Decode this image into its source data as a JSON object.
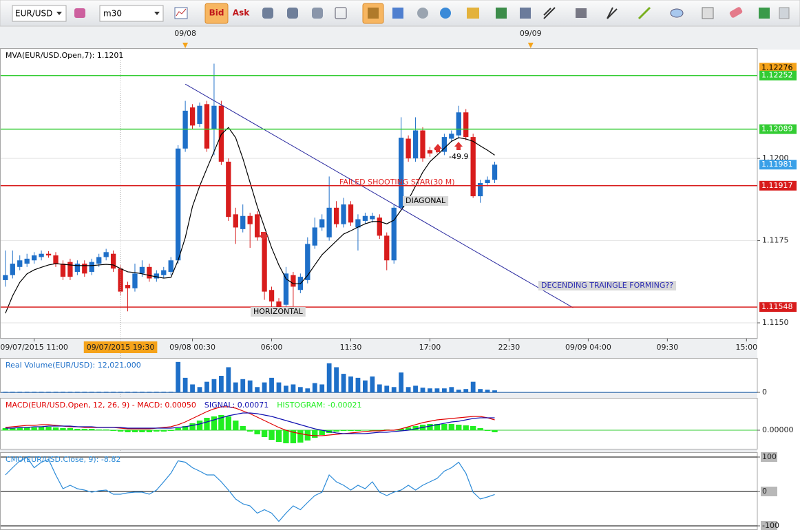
{
  "toolbar": {
    "symbol": "EUR/USD",
    "timeframe": "m30",
    "bid": "Bid",
    "ask": "Ask"
  },
  "chart_data": [
    {
      "type": "candlestick",
      "up_color": "#1e6fc8",
      "down_color": "#d81c1c",
      "open": [
        1.1163,
        1.11645,
        1.1167,
        1.1168,
        1.1169,
        1.117,
        1.1171,
        1.11705,
        1.1168,
        1.11685,
        1.11655,
        1.1168,
        1.11655,
        1.1168,
        1.117,
        1.1171,
        1.11665,
        1.11615,
        1.11605,
        1.1165,
        1.1167,
        1.11635,
        1.11645,
        1.11655,
        1.1169,
        1.1203,
        1.12155,
        1.12105,
        1.12165,
        1.1209,
        1.1216,
        1.1199,
        1.1183,
        1.11785,
        1.11825,
        1.1183,
        1.11765,
        1.116,
        1.11565,
        1.11555,
        1.11645,
        1.116,
        1.1163,
        1.11735,
        1.1179,
        1.1176,
        1.1185,
        1.118,
        1.1186,
        1.1179,
        1.1181,
        1.11815,
        1.1182,
        1.11765,
        1.1169,
        1.1185,
        1.1206,
        1.12,
        1.12085,
        1.12025,
        1.1203,
        1.1202,
        1.1206,
        1.1207,
        1.1214,
        1.12065,
        1.11885,
        1.11925,
        1.11935
      ],
      "high": [
        1.1172,
        1.1172,
        1.11705,
        1.1171,
        1.11715,
        1.1172,
        1.11718,
        1.11715,
        1.1169,
        1.11695,
        1.1169,
        1.1169,
        1.11695,
        1.1171,
        1.11725,
        1.1172,
        1.11675,
        1.11625,
        1.1168,
        1.1169,
        1.1168,
        1.1166,
        1.1167,
        1.117,
        1.1204,
        1.12175,
        1.12165,
        1.1217,
        1.12175,
        1.12288,
        1.12175,
        1.12,
        1.1185,
        1.1186,
        1.11835,
        1.1184,
        1.1177,
        1.1161,
        1.11575,
        1.1167,
        1.11655,
        1.1165,
        1.1176,
        1.1182,
        1.1183,
        1.11945,
        1.1187,
        1.1188,
        1.1187,
        1.1183,
        1.11835,
        1.11835,
        1.1183,
        1.11775,
        1.1186,
        1.12125,
        1.1207,
        1.12125,
        1.12095,
        1.12035,
        1.1204,
        1.12075,
        1.12085,
        1.1216,
        1.1215,
        1.12075,
        1.11935,
        1.11945,
        1.1199
      ],
      "low": [
        1.1161,
        1.11635,
        1.1166,
        1.1167,
        1.1168,
        1.1169,
        1.11698,
        1.1167,
        1.1163,
        1.1163,
        1.11645,
        1.1164,
        1.11645,
        1.1167,
        1.1169,
        1.11655,
        1.11585,
        1.11535,
        1.11595,
        1.1164,
        1.11625,
        1.11625,
        1.11635,
        1.11645,
        1.1168,
        1.1202,
        1.1209,
        1.12095,
        1.1202,
        1.1201,
        1.1198,
        1.1181,
        1.1174,
        1.11775,
        1.11728,
        1.1175,
        1.1157,
        1.1154,
        1.1154,
        1.11545,
        1.1155,
        1.1159,
        1.1162,
        1.11725,
        1.1178,
        1.1175,
        1.1179,
        1.1179,
        1.11795,
        1.1172,
        1.118,
        1.11805,
        1.11755,
        1.1166,
        1.1168,
        1.1184,
        1.1199,
        1.1199,
        1.1199,
        1.12005,
        1.12015,
        1.1201,
        1.1205,
        1.1206,
        1.12055,
        1.1188,
        1.11865,
        1.11915,
        1.11925
      ],
      "close": [
        1.11645,
        1.1168,
        1.1169,
        1.11695,
        1.11705,
        1.1171,
        1.11705,
        1.1168,
        1.1164,
        1.1164,
        1.1168,
        1.1165,
        1.11685,
        1.117,
        1.11715,
        1.11665,
        1.11595,
        1.11605,
        1.1165,
        1.1167,
        1.11635,
        1.1165,
        1.1166,
        1.1169,
        1.1203,
        1.12145,
        1.121,
        1.1216,
        1.1203,
        1.1216,
        1.1199,
        1.11822,
        1.1179,
        1.11825,
        1.118,
        1.1176,
        1.11595,
        1.11565,
        1.11548,
        1.1165,
        1.1161,
        1.1164,
        1.1174,
        1.1179,
        1.11815,
        1.1185,
        1.118,
        1.1186,
        1.11805,
        1.11815,
        1.11825,
        1.11825,
        1.11765,
        1.1169,
        1.1185,
        1.12063,
        1.12,
        1.12085,
        1.12,
        1.12015,
        1.12025,
        1.12065,
        1.12075,
        1.1214,
        1.12065,
        1.11885,
        1.11925,
        1.11935,
        1.11981
      ],
      "series": [
        {
          "name": "MVA(EUR/USD.Open,7): 1.1201",
          "color": "#000000",
          "values": [
            1.11529,
            1.11582,
            1.11623,
            1.11649,
            1.11661,
            1.11669,
            1.11676,
            1.1168,
            1.11678,
            1.11676,
            1.11674,
            1.11674,
            1.11674,
            1.11676,
            1.11678,
            1.11676,
            1.11665,
            1.11655,
            1.11653,
            1.11649,
            1.11644,
            1.1164,
            1.11636,
            1.11638,
            1.1169,
            1.11759,
            1.11854,
            1.11916,
            1.11969,
            1.12021,
            1.12073,
            1.12094,
            1.12063,
            1.12,
            1.11927,
            1.11854,
            1.11791,
            1.11728,
            1.11676,
            1.11634,
            1.11619,
            1.11619,
            1.11644,
            1.11676,
            1.11707,
            1.11728,
            1.11749,
            1.1177,
            1.1178,
            1.11791,
            1.11801,
            1.11808,
            1.11808,
            1.11801,
            1.11812,
            1.11843,
            1.11874,
            1.11916,
            1.11958,
            1.1199,
            1.1201,
            1.12031,
            1.12052,
            1.12063,
            1.12059,
            1.12052,
            1.12038,
            1.12025,
            1.1201
          ]
        }
      ],
      "xlim": [
        -0.75,
        104.5
      ],
      "xticks": [
        {
          "value": 4,
          "label": "09/07/2015 11:00"
        },
        {
          "value": 26,
          "label": "09/08 00:30"
        },
        {
          "value": 37,
          "label": "06:00"
        },
        {
          "value": 48,
          "label": "11:30"
        },
        {
          "value": 59,
          "label": "17:00"
        },
        {
          "value": 70,
          "label": "22:30"
        },
        {
          "value": 81,
          "label": "09/09 04:00"
        },
        {
          "value": 92,
          "label": "09:30"
        },
        {
          "value": 103,
          "label": "15:00"
        }
      ],
      "top_markers": [
        {
          "value": 25,
          "label": "09/08"
        },
        {
          "value": 73,
          "label": "09/09"
        }
      ],
      "crosshair": {
        "value": 16,
        "label": "09/07/2015 19:30"
      },
      "ylim": [
        1.11454,
        1.12331
      ],
      "yticks": [
        {
          "value": 1.115,
          "label": "1.1150"
        },
        {
          "value": 1.1175,
          "label": "1.1175"
        },
        {
          "value": 1.12,
          "label": "1.1200"
        }
      ],
      "grid": true,
      "grid_color": "#e2e2e2",
      "levels": [
        {
          "value": 1.12276,
          "color": "#f5a31a",
          "line": false
        },
        {
          "value": 1.12252,
          "color": "#33cc33",
          "line": true
        },
        {
          "value": 1.12089,
          "color": "#33cc33",
          "line": true
        },
        {
          "value": 1.11981,
          "color": "#3aa0e8",
          "line": false
        },
        {
          "value": 1.11917,
          "color": "#d81c1c",
          "line": true
        },
        {
          "value": 1.11548,
          "color": "#d81c1c",
          "line": true
        }
      ],
      "trendline": {
        "x": [
          25,
          78.9
        ],
        "y": [
          1.12226,
          1.11546
        ],
        "color": "#2a2aa0"
      },
      "annotations": [
        {
          "text": "FAILED SHOOTING STAR(30 M)",
          "color": "#e02020"
        },
        {
          "text": "DIAGONAL",
          "color": "#000000"
        },
        {
          "text": "HORIZONTAL",
          "color": "#000000"
        },
        {
          "text": "DECENDING TRAINGLE FORMING??",
          "color": "#2a2ab0"
        },
        {
          "text": "-49.9",
          "color": "#000000"
        }
      ]
    },
    {
      "type": "bar",
      "series": [
        {
          "name": "Real Volume(EUR/USD): 12,021,000",
          "color": "#1e6fc8",
          "values": [
            1,
            1,
            1,
            1,
            1,
            1,
            1,
            1,
            1,
            1,
            1,
            1,
            1,
            1,
            1,
            1,
            1,
            1,
            1,
            1,
            1,
            1,
            1,
            1,
            46,
            22,
            12,
            8,
            16,
            20,
            25,
            38,
            15,
            20,
            18,
            8,
            15,
            22,
            15,
            10,
            12,
            8,
            6,
            14,
            12,
            44,
            38,
            28,
            24,
            22,
            18,
            24,
            12,
            10,
            8,
            30,
            8,
            10,
            7,
            6,
            6,
            6,
            8,
            4,
            5,
            16,
            5,
            4,
            3
          ]
        }
      ],
      "ylim": [
        0,
        50
      ],
      "yticks": [
        0
      ],
      "grid": true,
      "grid_color": "#1e6fc8"
    },
    {
      "type": "line",
      "series": [
        {
          "name": "MACD(EUR/USD.Open, 12, 26, 9) -  MACD: 0.00050",
          "color": "#e00000",
          "style": "line",
          "values": [
            8e-05,
            0.0001,
            0.00012,
            0.00014,
            0.00014,
            0.00016,
            0.00016,
            0.00014,
            0.00012,
            0.0001,
            0.0001,
            8e-05,
            8e-05,
            8e-05,
            8e-05,
            8e-05,
            6e-05,
            4e-05,
            4e-05,
            4e-05,
            4e-05,
            6e-05,
            8e-05,
            0.0001,
            0.00016,
            0.00024,
            0.00034,
            0.00044,
            0.00054,
            0.00062,
            0.00068,
            0.00068,
            0.00064,
            0.00056,
            0.00048,
            0.00038,
            0.00028,
            0.00018,
            8e-05,
            0,
            -6e-05,
            -0.0001,
            -0.00014,
            -0.00016,
            -0.00016,
            -0.00014,
            -0.00012,
            -0.0001,
            -8e-05,
            -6e-05,
            -4e-05,
            -2e-05,
            -2e-05,
            0,
            0,
            4e-05,
            0.0001,
            0.00016,
            0.00022,
            0.00026,
            0.0003,
            0.00032,
            0.00034,
            0.00036,
            0.00038,
            0.0004,
            0.0004,
            0.00036,
            0.0003
          ]
        },
        {
          "name": "SIGNAL: 0.00071",
          "color": "#1010b0",
          "style": "line",
          "values": [
            6e-05,
            6e-05,
            8e-05,
            8e-05,
            0.0001,
            0.0001,
            0.00012,
            0.00012,
            0.00012,
            0.00012,
            0.0001,
            0.0001,
            0.0001,
            8e-05,
            8e-05,
            8e-05,
            8e-05,
            6e-05,
            6e-05,
            6e-05,
            6e-05,
            6e-05,
            6e-05,
            6e-05,
            8e-05,
            0.0001,
            0.00014,
            0.00018,
            0.00024,
            0.0003,
            0.00036,
            0.00042,
            0.00046,
            0.0005,
            0.0005,
            0.00048,
            0.00044,
            0.0004,
            0.00034,
            0.00028,
            0.00022,
            0.00016,
            0.0001,
            4e-05,
            0,
            -4e-05,
            -8e-05,
            -0.0001,
            -0.0001,
            -0.0001,
            -0.0001,
            -8e-05,
            -6e-05,
            -6e-05,
            -4e-05,
            -2e-05,
            0,
            4e-05,
            8e-05,
            0.00012,
            0.00016,
            0.0002,
            0.00024,
            0.00026,
            0.0003,
            0.00034,
            0.00036,
            0.00036,
            0.00036
          ]
        },
        {
          "name": "HISTOGRAM: -0.00021",
          "color": "#22ee22",
          "style": "histogram",
          "values": [
            6e-05,
            6e-05,
            8e-05,
            8e-05,
            8e-05,
            0.0001,
            0.0001,
            8e-05,
            6e-05,
            6e-05,
            4e-05,
            4e-05,
            4e-05,
            2e-05,
            2e-05,
            -2e-05,
            -4e-05,
            -6e-05,
            -6e-05,
            -6e-05,
            -6e-05,
            -4e-05,
            -4e-05,
            -2e-05,
            6e-05,
            0.00012,
            0.0002,
            0.00028,
            0.00036,
            0.0004,
            0.00044,
            0.0004,
            0.00028,
            0.00012,
            -4e-05,
            -0.00012,
            -0.0002,
            -0.00028,
            -0.00034,
            -0.00038,
            -0.00038,
            -0.00036,
            -0.0003,
            -0.00022,
            -0.00014,
            -8e-05,
            -4e-05,
            -2e-05,
            -2e-05,
            -2e-05,
            0,
            -2e-05,
            0,
            2e-05,
            0,
            4e-05,
            8e-05,
            0.00012,
            0.00016,
            0.00018,
            0.00018,
            0.00018,
            0.00018,
            0.00016,
            0.00014,
            0.00012,
            6e-05,
            -2e-05,
            -6e-05
          ]
        }
      ],
      "ylim": [
        -0.00054,
        0.0009
      ],
      "yticks": [
        {
          "value": 0,
          "label": "0.00000"
        }
      ],
      "grid": true,
      "grid_color": "#33cc33"
    },
    {
      "type": "line",
      "series": [
        {
          "name": "CMO(EUR/USD.Close, 9): -8.82",
          "color": "#2a8ad8",
          "style": "line",
          "values": [
            48,
            69,
            89,
            99,
            69,
            85,
            93,
            48,
            8,
            18,
            8,
            4,
            -2,
            2,
            4,
            -8,
            -8,
            -4,
            -2,
            -2,
            -8,
            4,
            28,
            53,
            89,
            85,
            69,
            59,
            48,
            48,
            28,
            4,
            -22,
            -36,
            -42,
            -63,
            -53,
            -63,
            -87,
            -63,
            -42,
            -53,
            -32,
            -12,
            -2,
            48,
            28,
            18,
            4,
            18,
            8,
            28,
            -2,
            -12,
            -2,
            4,
            18,
            4,
            18,
            28,
            38,
            59,
            69,
            85,
            53,
            -2,
            -22,
            -16,
            -8.82
          ]
        }
      ],
      "ylim": [
        -110,
        110
      ],
      "yticks": [
        100,
        0,
        -100
      ],
      "grid": true,
      "grid_color": "#000000",
      "tick_style": "boxed"
    }
  ]
}
